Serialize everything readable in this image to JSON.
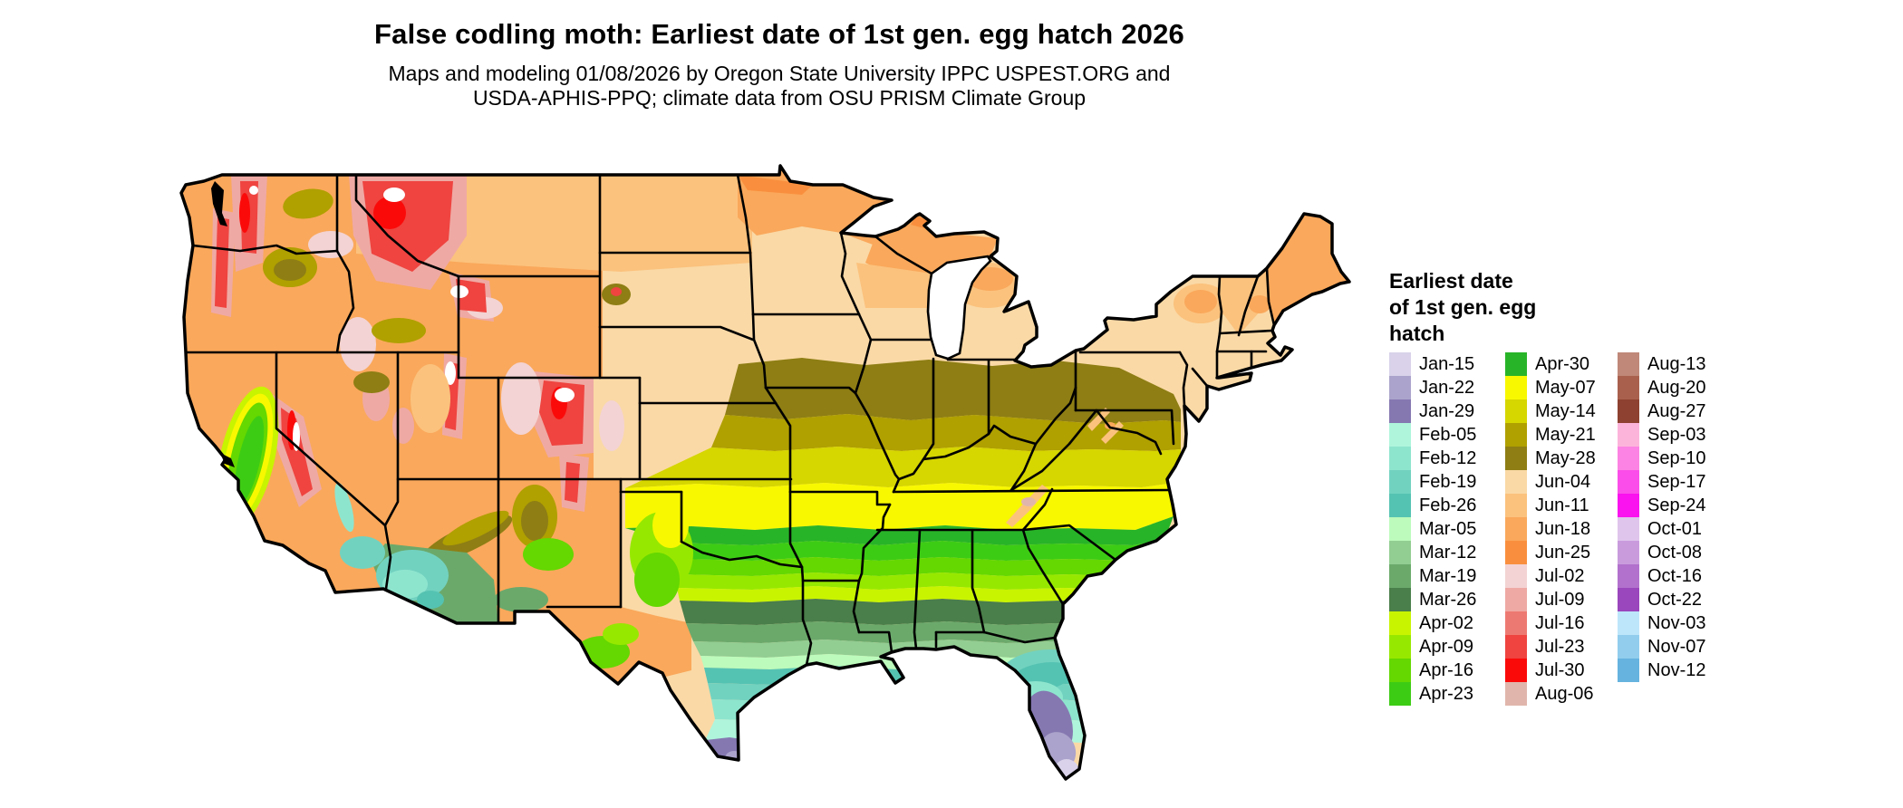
{
  "header": {
    "title": "False codling moth: Earliest date of 1st gen. egg hatch 2026",
    "subtitle_line1": "Maps and modeling 01/08/2026 by Oregon State University IPPC USPEST.ORG and",
    "subtitle_line2": "USDA-APHIS-PPQ; climate data from OSU PRISM Climate Group"
  },
  "legend": {
    "title": "Earliest date\nof 1st gen. egg\nhatch",
    "columns": [
      [
        {
          "label": "Jan-15",
          "color": "#D9D2EA"
        },
        {
          "label": "Jan-22",
          "color": "#ABA3CB"
        },
        {
          "label": "Jan-29",
          "color": "#8578B1"
        },
        {
          "label": "Feb-05",
          "color": "#AFF5DC"
        },
        {
          "label": "Feb-12",
          "color": "#8EE5CE"
        },
        {
          "label": "Feb-19",
          "color": "#72D2C0"
        },
        {
          "label": "Feb-26",
          "color": "#55C3B2"
        },
        {
          "label": "Mar-05",
          "color": "#BCFBBC"
        },
        {
          "label": "Mar-12",
          "color": "#92CD92"
        },
        {
          "label": "Mar-19",
          "color": "#6BA96B"
        },
        {
          "label": "Mar-26",
          "color": "#4A7E4A"
        },
        {
          "label": "Apr-02",
          "color": "#C8F400"
        },
        {
          "label": "Apr-09",
          "color": "#97E800"
        },
        {
          "label": "Apr-16",
          "color": "#64D800"
        },
        {
          "label": "Apr-23",
          "color": "#3DCC14"
        }
      ],
      [
        {
          "label": "Apr-30",
          "color": "#28B428"
        },
        {
          "label": "May-07",
          "color": "#F8F800"
        },
        {
          "label": "May-14",
          "color": "#D6D600"
        },
        {
          "label": "May-21",
          "color": "#B0A000"
        },
        {
          "label": "May-28",
          "color": "#8E7E14"
        },
        {
          "label": "Jun-04",
          "color": "#FAD9A6"
        },
        {
          "label": "Jun-11",
          "color": "#FBC27D"
        },
        {
          "label": "Jun-18",
          "color": "#FAA85B"
        },
        {
          "label": "Jun-25",
          "color": "#F98F3E"
        },
        {
          "label": "Jul-02",
          "color": "#F3D3D3"
        },
        {
          "label": "Jul-09",
          "color": "#EFA9A4"
        },
        {
          "label": "Jul-16",
          "color": "#ED7A72"
        },
        {
          "label": "Jul-23",
          "color": "#EF4440"
        },
        {
          "label": "Jul-30",
          "color": "#FB0A0A"
        },
        {
          "label": "Aug-06",
          "color": "#E0B6AC"
        }
      ],
      [
        {
          "label": "Aug-13",
          "color": "#BF8878"
        },
        {
          "label": "Aug-20",
          "color": "#A9614E"
        },
        {
          "label": "Aug-27",
          "color": "#8E4130"
        },
        {
          "label": "Sep-03",
          "color": "#FCB4DB"
        },
        {
          "label": "Sep-10",
          "color": "#FC83E3"
        },
        {
          "label": "Sep-17",
          "color": "#FB4DE9"
        },
        {
          "label": "Sep-24",
          "color": "#FA12EF"
        },
        {
          "label": "Oct-01",
          "color": "#DFC5EC"
        },
        {
          "label": "Oct-08",
          "color": "#C99BDD"
        },
        {
          "label": "Oct-16",
          "color": "#B271CD"
        },
        {
          "label": "Oct-22",
          "color": "#9A46BC"
        },
        {
          "label": "Nov-03",
          "color": "#BDE6FA"
        },
        {
          "label": "Nov-07",
          "color": "#92CDED"
        },
        {
          "label": "Nov-12",
          "color": "#66B3DF"
        }
      ]
    ]
  }
}
